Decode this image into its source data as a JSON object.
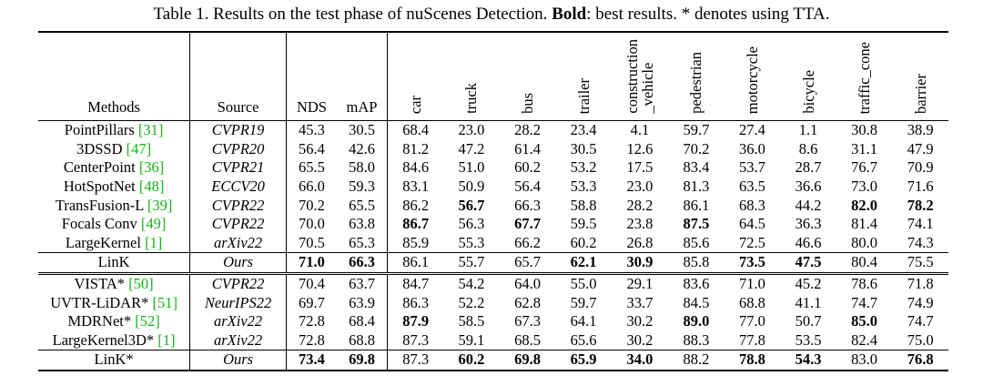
{
  "caption": {
    "prefix": "Table 1. Results on the test phase of nuScenes Detection. ",
    "bold_word": "Bold",
    "suffix": ": best results. * denotes using TTA."
  },
  "headers": {
    "methods": "Methods",
    "source": "Source",
    "nds": "NDS",
    "map": "mAP",
    "classes": [
      "car",
      "truck",
      "bus",
      "trailer",
      "construction\n_vehicle",
      "pedestrian",
      "motorcycle",
      "bicycle",
      "traffic_cone",
      "barrier"
    ]
  },
  "group1": [
    {
      "name": "PointPillars",
      "ref": "[31]",
      "source": "CVPR19",
      "nds": "45.3",
      "map": "30.5",
      "vals": [
        "68.4",
        "23.0",
        "28.2",
        "23.4",
        "4.1",
        "59.7",
        "27.4",
        "1.1",
        "30.8",
        "38.9"
      ],
      "bold": []
    },
    {
      "name": "3DSSD",
      "ref": "[47]",
      "source": "CVPR20",
      "nds": "56.4",
      "map": "42.6",
      "vals": [
        "81.2",
        "47.2",
        "61.4",
        "30.5",
        "12.6",
        "70.2",
        "36.0",
        "8.6",
        "31.1",
        "47.9"
      ],
      "bold": []
    },
    {
      "name": "CenterPoint",
      "ref": "[36]",
      "source": "CVPR21",
      "nds": "65.5",
      "map": "58.0",
      "vals": [
        "84.6",
        "51.0",
        "60.2",
        "53.2",
        "17.5",
        "83.4",
        "53.7",
        "28.7",
        "76.7",
        "70.9"
      ],
      "bold": []
    },
    {
      "name": "HotSpotNet",
      "ref": "[48]",
      "source": "ECCV20",
      "nds": "66.0",
      "map": "59.3",
      "vals": [
        "83.1",
        "50.9",
        "56.4",
        "53.3",
        "23.0",
        "81.3",
        "63.5",
        "36.6",
        "73.0",
        "71.6"
      ],
      "bold": []
    },
    {
      "name": "TransFusion-L",
      "ref": "[39]",
      "source": "CVPR22",
      "nds": "70.2",
      "map": "65.5",
      "vals": [
        "86.2",
        "56.7",
        "66.3",
        "58.8",
        "28.2",
        "86.1",
        "68.3",
        "44.2",
        "82.0",
        "78.2"
      ],
      "bold": [
        1,
        8,
        9
      ]
    },
    {
      "name": "Focals Conv",
      "ref": "[49]",
      "source": "CVPR22",
      "nds": "70.0",
      "map": "63.8",
      "vals": [
        "86.7",
        "56.3",
        "67.7",
        "59.5",
        "23.8",
        "87.5",
        "64.5",
        "36.3",
        "81.4",
        "74.1"
      ],
      "bold": [
        0,
        2,
        5
      ]
    },
    {
      "name": "LargeKernel",
      "ref": "[1]",
      "source": "arXiv22",
      "nds": "70.5",
      "map": "65.3",
      "vals": [
        "85.9",
        "55.3",
        "66.2",
        "60.2",
        "26.8",
        "85.6",
        "72.5",
        "46.6",
        "80.0",
        "74.3"
      ],
      "bold": []
    }
  ],
  "ours1": {
    "name": "LinK",
    "ref": "",
    "source": "Ours",
    "nds": "71.0",
    "map": "66.3",
    "vals": [
      "86.1",
      "55.7",
      "65.7",
      "62.1",
      "30.9",
      "85.8",
      "73.5",
      "47.5",
      "80.4",
      "75.5"
    ],
    "bold": [
      3,
      4,
      6,
      7
    ],
    "nds_bold": true,
    "map_bold": true
  },
  "group2": [
    {
      "name": "VISTA*",
      "ref": "[50]",
      "source": "CVPR22",
      "nds": "70.4",
      "map": "63.7",
      "vals": [
        "84.7",
        "54.2",
        "64.0",
        "55.0",
        "29.1",
        "83.6",
        "71.0",
        "45.2",
        "78.6",
        "71.8"
      ],
      "bold": []
    },
    {
      "name": "UVTR-LiDAR*",
      "ref": "[51]",
      "source": "NeurIPS22",
      "nds": "69.7",
      "map": "63.9",
      "vals": [
        "86.3",
        "52.2",
        "62.8",
        "59.7",
        "33.7",
        "84.5",
        "68.8",
        "41.1",
        "74.7",
        "74.9"
      ],
      "bold": []
    },
    {
      "name": "MDRNet*",
      "ref": "[52]",
      "source": "arXiv22",
      "nds": "72.8",
      "map": "68.4",
      "vals": [
        "87.9",
        "58.5",
        "67.3",
        "64.1",
        "30.2",
        "89.0",
        "77.0",
        "50.7",
        "85.0",
        "74.7"
      ],
      "bold": [
        0,
        5,
        8
      ]
    },
    {
      "name": "LargeKernel3D*",
      "ref": "[1]",
      "source": "arXiv22",
      "nds": "72.8",
      "map": "68.8",
      "vals": [
        "87.3",
        "59.1",
        "68.5",
        "65.6",
        "30.2",
        "88.3",
        "77.8",
        "53.5",
        "82.4",
        "75.0"
      ],
      "bold": []
    }
  ],
  "ours2": {
    "name": "LinK*",
    "ref": "",
    "source": "Ours",
    "nds": "73.4",
    "map": "69.8",
    "vals": [
      "87.3",
      "60.2",
      "69.8",
      "65.9",
      "34.0",
      "88.2",
      "78.8",
      "54.3",
      "83.0",
      "76.8"
    ],
    "bold": [
      1,
      2,
      3,
      4,
      6,
      7,
      9
    ],
    "nds_bold": true,
    "map_bold": true
  }
}
